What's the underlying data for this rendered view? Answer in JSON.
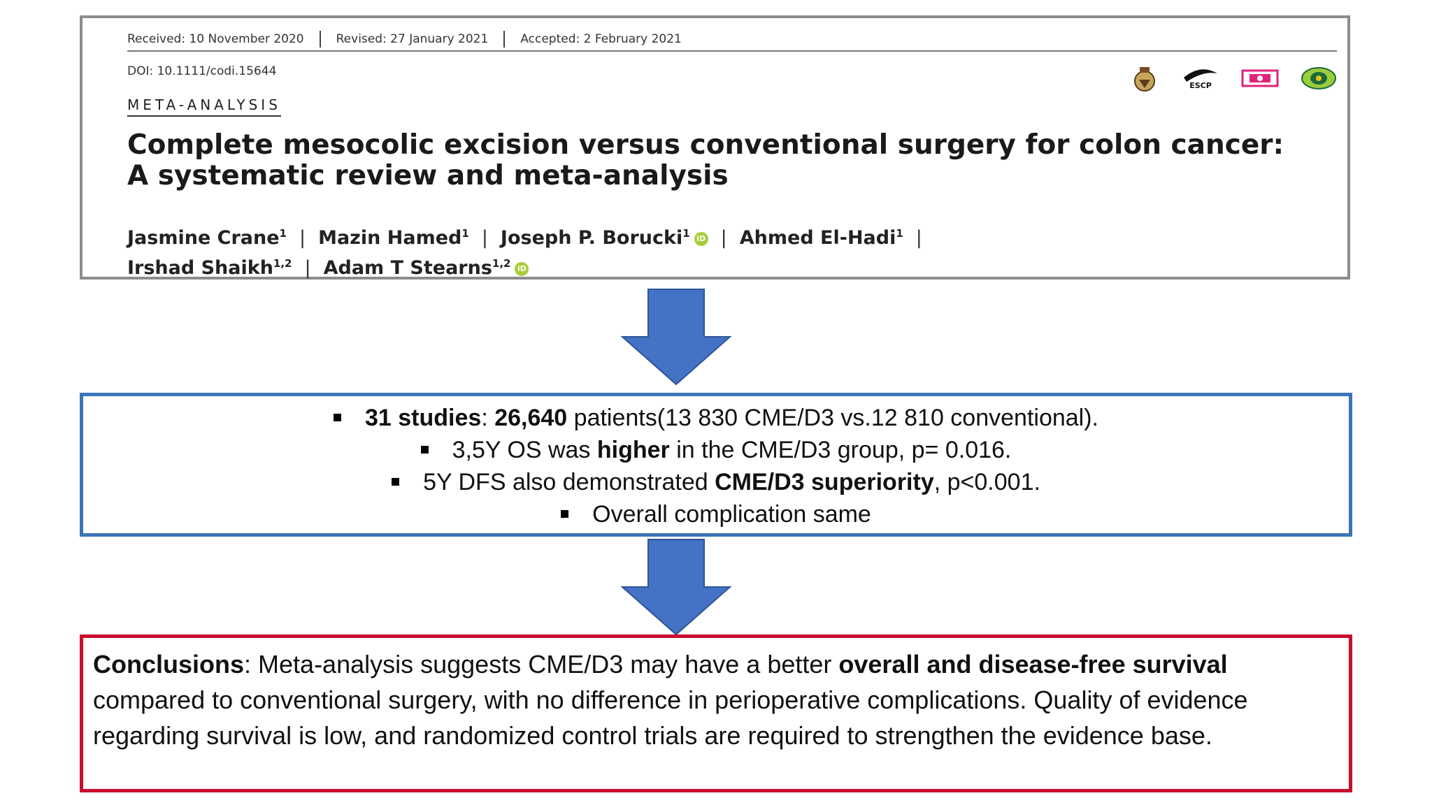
{
  "paper": {
    "received": "Received: 10 November 2020",
    "revised": "Revised: 27 January 2021",
    "accepted": "Accepted: 2 February 2021",
    "doi": "DOI: 10.1111/codi.15644",
    "category": "META-ANALYSIS",
    "title": "Complete mesocolic excision versus conventional surgery for colon cancer: A systematic review and meta-analysis",
    "logos": [
      "society-crest-logo",
      "escp-logo",
      "society-logo-pink",
      "society-logo-green"
    ],
    "logo_text": {
      "escp": "ESCP"
    },
    "authors": [
      {
        "name": "Jasmine Crane",
        "aff": "1",
        "orcid": false
      },
      {
        "name": "Mazin Hamed",
        "aff": "1",
        "orcid": false
      },
      {
        "name": "Joseph P. Borucki",
        "aff": "1",
        "orcid": true
      },
      {
        "name": "Ahmed El-Hadi",
        "aff": "1",
        "orcid": false
      },
      {
        "name": "Irshad Shaikh",
        "aff": "1,2",
        "orcid": false
      },
      {
        "name": "Adam T Stearns",
        "aff": "1,2",
        "orcid": true
      }
    ],
    "author_separator": "|"
  },
  "arrows": {
    "color": "#4472c4"
  },
  "findings": {
    "border_color": "#3b75b8",
    "items": [
      {
        "b1": "31 studies",
        "t1": ": ",
        "b2": "26,640",
        "t2": " patients(13 830 CME/D3 vs.12 810 conventional)."
      },
      {
        "t1": "3,5Y OS was ",
        "b1": "higher",
        "t2": " in the CME/D3 group, p= 0.016."
      },
      {
        "t1": "5Y DFS also demonstrated ",
        "b1": "CME/D3 superiority",
        "t2": ", p<0.001."
      },
      {
        "t1": "Overall complication same"
      }
    ]
  },
  "conclusion": {
    "border_color": "#c8102e",
    "label": "Conclusions",
    "text1": ": Meta-analysis suggests CME/D3 may have a better ",
    "bold": "overall and disease-free survival",
    "text2": " compared to conventional surgery, with no difference in perioperative complications. Quality of evidence regarding survival is low, and randomized control trials are required to strengthen the evidence base."
  }
}
